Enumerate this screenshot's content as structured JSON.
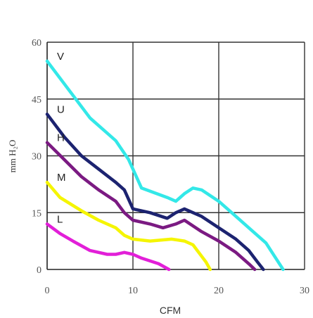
{
  "chart_data": {
    "type": "line",
    "title": "",
    "xlabel": "CFM",
    "ylabel": "mm H₂O",
    "xlim": [
      0,
      30
    ],
    "ylim": [
      0,
      60
    ],
    "x_ticks": [
      0,
      10,
      20,
      30
    ],
    "y_ticks": [
      0,
      15,
      30,
      45,
      60
    ],
    "grid": true,
    "legend": "inline",
    "series": [
      {
        "name": "V",
        "color": "#33e8e8",
        "points": [
          [
            0,
            55
          ],
          [
            2,
            49
          ],
          [
            5,
            40
          ],
          [
            8,
            34
          ],
          [
            9.5,
            29
          ],
          [
            11,
            21.5
          ],
          [
            14,
            19
          ],
          [
            15,
            18
          ],
          [
            16,
            20
          ],
          [
            17,
            21.5
          ],
          [
            18,
            21
          ],
          [
            20,
            18
          ],
          [
            22,
            14
          ],
          [
            24,
            10
          ],
          [
            25.5,
            7
          ],
          [
            26.5,
            3.5
          ],
          [
            27.5,
            0
          ]
        ]
      },
      {
        "name": "U",
        "color": "#1c2370",
        "points": [
          [
            0,
            41
          ],
          [
            2,
            35
          ],
          [
            4,
            30
          ],
          [
            6,
            26.5
          ],
          [
            8,
            23
          ],
          [
            9,
            21
          ],
          [
            10,
            16
          ],
          [
            12,
            15
          ],
          [
            14,
            13.5
          ],
          [
            15,
            15
          ],
          [
            16,
            16
          ],
          [
            18,
            14
          ],
          [
            20,
            11
          ],
          [
            22,
            8
          ],
          [
            23.5,
            5
          ],
          [
            24.5,
            2
          ],
          [
            25.2,
            0
          ]
        ]
      },
      {
        "name": "H",
        "color": "#7b1a82",
        "points": [
          [
            0,
            33.5
          ],
          [
            2,
            29
          ],
          [
            4,
            24.5
          ],
          [
            6,
            21
          ],
          [
            8,
            18
          ],
          [
            9,
            15
          ],
          [
            10,
            13
          ],
          [
            12,
            12
          ],
          [
            13.5,
            11
          ],
          [
            15,
            12
          ],
          [
            16,
            13
          ],
          [
            18,
            10
          ],
          [
            20,
            7.5
          ],
          [
            22,
            4.5
          ],
          [
            23.5,
            1.5
          ],
          [
            24.2,
            0
          ]
        ]
      },
      {
        "name": "M",
        "color": "#f5f500",
        "points": [
          [
            0,
            23
          ],
          [
            1.5,
            19
          ],
          [
            4,
            15.5
          ],
          [
            6,
            13
          ],
          [
            8,
            11
          ],
          [
            9,
            9
          ],
          [
            10,
            8
          ],
          [
            12,
            7.5
          ],
          [
            14.5,
            8
          ],
          [
            16,
            7.5
          ],
          [
            17,
            6.5
          ],
          [
            18,
            3.5
          ],
          [
            18.5,
            2
          ],
          [
            19,
            0
          ]
        ]
      },
      {
        "name": "L",
        "color": "#e21fd8",
        "points": [
          [
            0,
            12
          ],
          [
            1.5,
            9.5
          ],
          [
            3,
            7.5
          ],
          [
            5,
            5
          ],
          [
            7,
            4
          ],
          [
            8,
            4
          ],
          [
            9,
            4.5
          ],
          [
            10,
            4
          ],
          [
            11,
            3
          ],
          [
            13,
            1.5
          ],
          [
            14.2,
            0
          ]
        ]
      }
    ]
  }
}
